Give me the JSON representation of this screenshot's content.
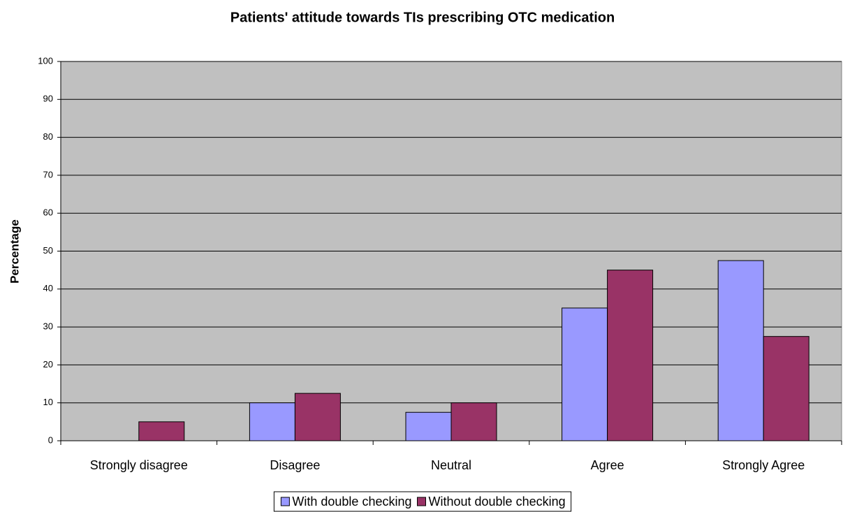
{
  "chart_data": {
    "type": "bar",
    "title": "Patients' attitude towards TIs prescribing OTC medication",
    "y_label": "Percentage",
    "categories": [
      "Strongly disagree",
      "Disagree",
      "Neutral",
      "Agree",
      "Strongly Agree"
    ],
    "series": [
      {
        "name": "With double checking",
        "color": "#9999ff",
        "values": [
          0,
          10,
          7.5,
          35,
          47.5
        ]
      },
      {
        "name": "Without double checking",
        "color": "#993366",
        "values": [
          5,
          12.5,
          10,
          45,
          27.5
        ]
      }
    ],
    "ylim": [
      0,
      100
    ],
    "yticks": [
      0,
      10,
      20,
      30,
      40,
      50,
      60,
      70,
      80,
      90,
      100
    ],
    "grid": true,
    "legend": "bottom"
  }
}
